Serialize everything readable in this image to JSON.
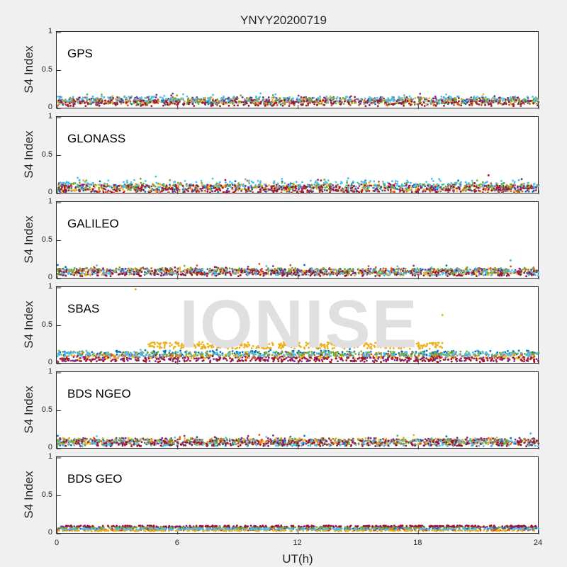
{
  "title": "YNYY20200719",
  "watermark": "IONISE",
  "xlabel": "UT(h)",
  "xticks": [
    "0",
    "6",
    "12",
    "18",
    "24"
  ],
  "colors": [
    "#0072bd",
    "#d95319",
    "#edb120",
    "#7e2f8e",
    "#77ac30",
    "#4dbeee",
    "#a2142f"
  ],
  "chart_data": [
    {
      "type": "scatter",
      "name": "GPS",
      "ylabel": "S4 Index",
      "xlim": [
        0,
        24
      ],
      "ylim": [
        0,
        1
      ],
      "yticks": [
        "1",
        "0.5",
        "0"
      ],
      "series_baselines": [
        0.09,
        0.08,
        0.1,
        0.11,
        0.1,
        0.12,
        0.07
      ],
      "noise": 0.04,
      "spikes": []
    },
    {
      "type": "scatter",
      "name": "GLONASS",
      "ylabel": "S4 Index",
      "xlim": [
        0,
        24
      ],
      "ylim": [
        0,
        1
      ],
      "yticks": [
        "1",
        "0.5",
        "0"
      ],
      "series_baselines": [
        0.07,
        0.06,
        0.08,
        0.07,
        0.09,
        0.12,
        0.06
      ],
      "noise": 0.05,
      "spikes": [
        {
          "x": 14.5,
          "y": 0.2
        },
        {
          "x": 21.5,
          "y": 0.24
        }
      ]
    },
    {
      "type": "scatter",
      "name": "GALILEO",
      "ylabel": "S4 Index",
      "xlim": [
        0,
        24
      ],
      "ylim": [
        0,
        1
      ],
      "yticks": [
        "1",
        "0.5",
        "0"
      ],
      "series_baselines": [
        0.09,
        0.1,
        0.08,
        0.09,
        0.1,
        0.08,
        0.07
      ],
      "noise": 0.04,
      "spikes": [
        {
          "x": 22.6,
          "y": 0.24
        }
      ]
    },
    {
      "type": "scatter",
      "name": "SBAS",
      "ylabel": "S4 Index",
      "xlim": [
        0,
        24
      ],
      "ylim": [
        0,
        1
      ],
      "yticks": [
        "1",
        "0.5",
        "0"
      ],
      "series_baselines": [
        0.14,
        0.1,
        0.09,
        0.06,
        0.13,
        0.12,
        0.05
      ],
      "noise": 0.03,
      "elevated": {
        "color_index": 2,
        "x_start": 4.5,
        "x_end": 19.2,
        "y": 0.24
      },
      "spikes": [
        {
          "x": 3.9,
          "y": 0.98
        },
        {
          "x": 19.2,
          "y": 0.64
        }
      ]
    },
    {
      "type": "scatter",
      "name": "BDS NGEO",
      "ylabel": "S4 Index",
      "xlim": [
        0,
        24
      ],
      "ylim": [
        0,
        1
      ],
      "yticks": [
        "1",
        "0.5",
        "0"
      ],
      "series_baselines": [
        0.08,
        0.09,
        0.1,
        0.1,
        0.09,
        0.07,
        0.07
      ],
      "noise": 0.04,
      "spikes": [
        {
          "x": 23.6,
          "y": 0.2
        }
      ]
    },
    {
      "type": "scatter",
      "name": "BDS GEO",
      "ylabel": "S4 Index",
      "xlim": [
        0,
        24
      ],
      "ylim": [
        0,
        1
      ],
      "yticks": [
        "1",
        "0.5",
        "0"
      ],
      "series_baselines": [
        0.07,
        0.05,
        0.04,
        0.09,
        0.08,
        0.06,
        0.1
      ],
      "noise": 0.008,
      "spikes": []
    }
  ]
}
